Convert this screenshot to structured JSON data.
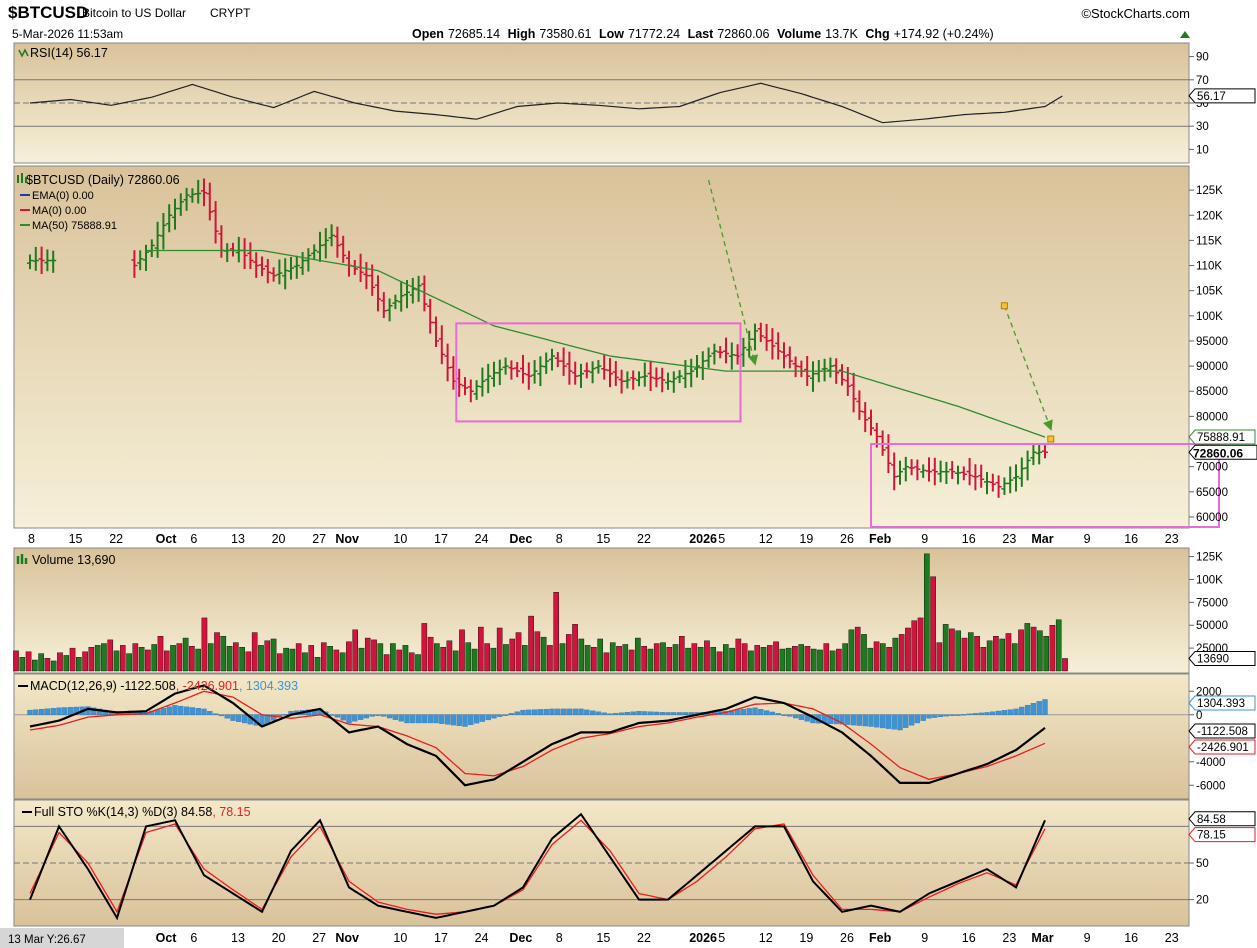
{
  "header": {
    "symbol": "$BTCUSD",
    "name": "Bitcoin to US Dollar",
    "exchange": "CRYPT",
    "datetime": "5-Mar-2026 11:53am",
    "brand": "©StockCharts.com",
    "open_label": "Open",
    "open": "72685.14",
    "high_label": "High",
    "high": "73580.61",
    "low_label": "Low",
    "low": "71772.24",
    "last_label": "Last",
    "last": "72860.06",
    "volume_label": "Volume",
    "volume": "13.7K",
    "chg_label": "Chg",
    "chg": "+174.92 (+0.24%)"
  },
  "cursor_readout": "13 Mar Y:26.67",
  "colors": {
    "up": "#1e7a1e",
    "down": "#d2143c",
    "ma50": "#2e8b2e",
    "box": "#e86bd6",
    "arrow": "#4a9a2a",
    "macd_hist": "#3f93d4",
    "signal": "#e81e1e",
    "panel_top": "#d9c29a",
    "panel_bottom": "#f6f0d8"
  },
  "x_axis": {
    "labels": [
      {
        "d": 0,
        "t": "8"
      },
      {
        "d": 7,
        "t": "15"
      },
      {
        "d": 14,
        "t": "22"
      },
      {
        "d": 22,
        "t": "Oct",
        "bold": true
      },
      {
        "d": 28,
        "t": "6"
      },
      {
        "d": 35,
        "t": "13"
      },
      {
        "d": 42,
        "t": "20"
      },
      {
        "d": 49,
        "t": "27"
      },
      {
        "d": 53,
        "t": "Nov",
        "bold": true
      },
      {
        "d": 63,
        "t": "10"
      },
      {
        "d": 70,
        "t": "17"
      },
      {
        "d": 77,
        "t": "24"
      },
      {
        "d": 83,
        "t": "Dec",
        "bold": true
      },
      {
        "d": 91,
        "t": "8"
      },
      {
        "d": 98,
        "t": "15"
      },
      {
        "d": 105,
        "t": "22"
      },
      {
        "d": 114,
        "t": "2026",
        "bold": true
      },
      {
        "d": 119,
        "t": "5"
      },
      {
        "d": 126,
        "t": "12"
      },
      {
        "d": 133,
        "t": "19"
      },
      {
        "d": 140,
        "t": "26"
      },
      {
        "d": 145,
        "t": "Feb",
        "bold": true
      },
      {
        "d": 154,
        "t": "9"
      },
      {
        "d": 161,
        "t": "16"
      },
      {
        "d": 168,
        "t": "23"
      },
      {
        "d": 173,
        "t": "Mar",
        "bold": true
      },
      {
        "d": 182,
        "t": "9"
      },
      {
        "d": 189,
        "t": "16"
      },
      {
        "d": 196,
        "t": "23"
      }
    ]
  },
  "chart_data": [
    {
      "type": "line",
      "title": "RSI(14) 56.17",
      "value_label": "56.17",
      "ylim": [
        0,
        100
      ],
      "y_ticks": [
        90,
        70,
        50,
        30,
        10
      ],
      "y_ticks_text": [
        "90",
        "70",
        "50",
        "30",
        "10"
      ],
      "levels": [
        70,
        30
      ],
      "series": [
        {
          "name": "RSI(14)",
          "x": [
            0,
            7,
            14,
            21,
            28,
            35,
            42,
            49,
            56,
            63,
            70,
            77,
            84,
            91,
            98,
            105,
            112,
            119,
            126,
            133,
            140,
            147,
            154,
            161,
            168,
            175,
            178
          ],
          "values": [
            50,
            53,
            48,
            55,
            66,
            55,
            46,
            60,
            50,
            43,
            40,
            36,
            47,
            50,
            48,
            45,
            47,
            59,
            67,
            58,
            47,
            33,
            36,
            40,
            42,
            47,
            56
          ]
        }
      ]
    },
    {
      "type": "line",
      "title": "$BTCUSD (Daily) 72860.06",
      "legend": [
        "EMA(0) 0.00",
        "MA(0) 0.00",
        "MA(50) 75888.91"
      ],
      "ylim": [
        58000,
        129000
      ],
      "y_ticks": [
        125000,
        120000,
        115000,
        110000,
        105000,
        100000,
        95000,
        90000,
        85000,
        80000,
        70000,
        65000,
        60000
      ],
      "y_ticks_text": [
        "125K",
        "120K",
        "115K",
        "110K",
        "105K",
        "100K",
        "95000",
        "90000",
        "85000",
        "80000",
        "70000",
        "65000",
        "60000"
      ],
      "ma50_label": "75888.91",
      "last_label": "72860.06",
      "price_x": [
        0,
        4,
        18,
        21,
        24,
        27,
        30,
        33,
        36,
        39,
        42,
        46,
        49,
        52,
        55,
        58,
        61,
        64,
        67,
        70,
        73,
        76,
        79,
        82,
        86,
        90,
        94,
        98,
        102,
        106,
        110,
        114,
        118,
        122,
        125,
        127,
        130,
        134,
        138,
        141,
        143,
        146,
        149,
        151,
        155,
        159,
        163,
        167,
        170,
        173,
        175
      ],
      "price_y": [
        111000,
        111000,
        110000,
        114000,
        120000,
        124000,
        124500,
        113000,
        113000,
        110000,
        108000,
        110000,
        113000,
        116000,
        110000,
        108000,
        101000,
        104000,
        106000,
        95000,
        87000,
        85000,
        88000,
        90000,
        88000,
        92000,
        88000,
        90000,
        87000,
        88000,
        87000,
        89000,
        93000,
        92000,
        97000,
        95000,
        92000,
        88000,
        90000,
        86000,
        81000,
        76000,
        68000,
        70000,
        69000,
        69000,
        68000,
        66000,
        68000,
        72860,
        72860
      ],
      "ma50_x": [
        20,
        40,
        60,
        80,
        100,
        120,
        140,
        160,
        175
      ],
      "ma50_y": [
        113000,
        113000,
        109000,
        98000,
        92000,
        89000,
        89000,
        82000,
        75889
      ],
      "boxes": [
        {
          "x0": 73.5,
          "x1": 122.5,
          "y0": 98500,
          "y1": 79000
        },
        {
          "x0": 145,
          "x1": 205,
          "y0": 74500,
          "y1": 58000
        }
      ],
      "arrows": [
        {
          "x0": 117,
          "y0": 127000,
          "x1": 125,
          "y1": 90500
        },
        {
          "x0": 168,
          "y0": 102000,
          "x1": 176,
          "y1": 77500
        }
      ]
    },
    {
      "type": "bar",
      "title": "Volume 13,690",
      "value_label": "13690",
      "ylim": [
        0,
        130000
      ],
      "y_ticks": [
        125000,
        100000,
        75000,
        50000,
        25000
      ],
      "y_ticks_text": [
        "125K",
        "100K",
        "75000",
        "50000",
        "25000"
      ],
      "values": [
        22000,
        15000,
        21000,
        12000,
        19000,
        14000,
        11000,
        20000,
        17000,
        25000,
        15000,
        21000,
        26000,
        28000,
        30000,
        34000,
        22000,
        28000,
        19000,
        30000,
        26000,
        23000,
        29000,
        38000,
        22000,
        28000,
        30000,
        36000,
        27000,
        24000,
        58000,
        30000,
        42000,
        38000,
        27000,
        31000,
        26000,
        21000,
        42000,
        28000,
        33000,
        35000,
        19000,
        25000,
        24000,
        30000,
        20000,
        28000,
        15000,
        31000,
        27000,
        23000,
        20000,
        32000,
        45000,
        25000,
        36000,
        34000,
        30000,
        18000,
        30000,
        23000,
        28000,
        20000,
        18000,
        52000,
        37000,
        30000,
        26000,
        33000,
        22000,
        45000,
        31000,
        24000,
        48000,
        30000,
        25000,
        47000,
        29000,
        35000,
        42000,
        28000,
        60000,
        43000,
        37000,
        28000,
        86000,
        30000,
        40000,
        51000,
        35000,
        28000,
        26000,
        35000,
        20000,
        31000,
        27000,
        29000,
        23000,
        36000,
        27000,
        24000,
        30000,
        31000,
        26000,
        29000,
        38000,
        25000,
        30000,
        26000,
        33000,
        26000,
        21000,
        29000,
        25000,
        35000,
        30000,
        22000,
        28000,
        26000,
        28000,
        32000,
        24000,
        25000,
        27000,
        29000,
        27000,
        24000,
        23000,
        30000,
        22000,
        24000,
        30000,
        45000,
        48000,
        40000,
        25000,
        32000,
        30000,
        26000,
        36000,
        40000,
        47000,
        55000,
        58000,
        128000,
        103000,
        31000,
        51000,
        46000,
        44000,
        36000,
        42000,
        38000,
        26000,
        33000,
        38000,
        35000,
        41000,
        30000,
        45000,
        52000,
        48000,
        44000,
        38000,
        50000,
        56000,
        13690
      ],
      "colors": [
        "d",
        "u",
        "d",
        "u",
        "u",
        "d",
        "u",
        "d",
        "u",
        "d",
        "u",
        "d",
        "d",
        "u",
        "u",
        "d",
        "u",
        "d",
        "u",
        "d",
        "u",
        "d",
        "u",
        "d",
        "d",
        "u",
        "d",
        "u",
        "d",
        "u",
        "d",
        "u",
        "d",
        "u",
        "u",
        "d",
        "u",
        "d",
        "d",
        "u",
        "d",
        "u",
        "d",
        "u",
        "u",
        "d",
        "u",
        "d",
        "u",
        "d",
        "u",
        "d",
        "u",
        "d",
        "d",
        "u",
        "d",
        "d",
        "u",
        "d",
        "u",
        "d",
        "u",
        "d",
        "u",
        "d",
        "d",
        "u",
        "d",
        "d",
        "u",
        "d",
        "u",
        "u",
        "d",
        "d",
        "u",
        "d",
        "u",
        "d",
        "d",
        "u",
        "d",
        "d",
        "u",
        "d",
        "d",
        "u",
        "d",
        "d",
        "u",
        "u",
        "d",
        "u",
        "d",
        "u",
        "d",
        "u",
        "d",
        "u",
        "d",
        "u",
        "d",
        "u",
        "d",
        "u",
        "d",
        "u",
        "d",
        "u",
        "d",
        "u",
        "d",
        "u",
        "u",
        "d",
        "d",
        "u",
        "d",
        "u",
        "d",
        "d",
        "u",
        "u",
        "d",
        "u",
        "d",
        "u",
        "u",
        "d",
        "u",
        "d",
        "u",
        "u",
        "d",
        "u",
        "u",
        "d",
        "u",
        "d",
        "u",
        "d",
        "d",
        "d",
        "d",
        "u",
        "d",
        "d",
        "u",
        "d",
        "u",
        "d",
        "u",
        "d",
        "d",
        "u",
        "d",
        "u",
        "d",
        "u",
        "d",
        "u",
        "d",
        "u",
        "u",
        "d",
        "u",
        "d",
        "u",
        "u",
        "u",
        "u"
      ]
    },
    {
      "type": "line",
      "title": "MACD(12,26,9) -1122.508, -2426.901, 1304.393",
      "title_parts": [
        "MACD(12,26,9) -1122.508",
        ", -2426.901",
        ", 1304.393"
      ],
      "ylim": [
        -7000,
        3300
      ],
      "y_ticks": [
        2000,
        0,
        -4000,
        -6000
      ],
      "y_ticks_text": [
        "2000",
        "0",
        "-4000",
        "-6000"
      ],
      "value_labels": [
        "1304.393",
        "-1122.508",
        "-2426.901"
      ],
      "x": [
        0,
        5,
        10,
        15,
        20,
        25,
        30,
        35,
        40,
        45,
        50,
        55,
        60,
        65,
        70,
        75,
        80,
        85,
        90,
        95,
        100,
        105,
        110,
        115,
        120,
        125,
        130,
        135,
        140,
        145,
        150,
        155,
        160,
        165,
        170,
        175
      ],
      "series": [
        {
          "name": "MACD(12,26,9)",
          "values": [
            -1000,
            -500,
            500,
            200,
            300,
            1800,
            2500,
            1000,
            -1000,
            0,
            500,
            -1500,
            -1000,
            -2500,
            -3500,
            -6000,
            -5500,
            -4000,
            -2500,
            -1500,
            -1500,
            -700,
            -500,
            0,
            500,
            1500,
            1000,
            -200,
            -1500,
            -3500,
            -5800,
            -5800,
            -5000,
            -4200,
            -3000,
            -1122
          ]
        },
        {
          "name": "Signal",
          "values": [
            -1300,
            -900,
            -200,
            0,
            100,
            1000,
            2000,
            1500,
            0,
            -300,
            0,
            -800,
            -1000,
            -1800,
            -2800,
            -5000,
            -5200,
            -4400,
            -3000,
            -2000,
            -1600,
            -1000,
            -700,
            -200,
            200,
            900,
            1000,
            500,
            -700,
            -2500,
            -4500,
            -5500,
            -5000,
            -4400,
            -3500,
            -2427
          ]
        },
        {
          "name": "Histogram",
          "values": [
            400,
            600,
            700,
            200,
            200,
            800,
            500,
            -500,
            -1000,
            300,
            500,
            -700,
            0,
            -700,
            -700,
            -1000,
            -300,
            400,
            500,
            500,
            100,
            300,
            200,
            200,
            300,
            600,
            0,
            -700,
            -800,
            -1000,
            -1300,
            -300,
            0,
            200,
            500,
            1304
          ]
        }
      ]
    },
    {
      "type": "line",
      "title": "Full STO %K(14,3) %D(3) 84.58, 78.15",
      "title_parts": [
        "Full STO %K(14,3) %D(3) 84.58",
        ", 78.15"
      ],
      "ylim": [
        0,
        100
      ],
      "y_ticks": [
        50,
        20
      ],
      "y_ticks_text": [
        "50",
        "20"
      ],
      "levels": [
        80,
        50,
        20
      ],
      "value_labels": [
        "84.58",
        "78.15"
      ],
      "x": [
        0,
        5,
        10,
        15,
        20,
        25,
        30,
        35,
        40,
        45,
        50,
        55,
        60,
        65,
        70,
        75,
        80,
        85,
        90,
        95,
        100,
        105,
        110,
        115,
        120,
        125,
        130,
        135,
        140,
        145,
        150,
        155,
        160,
        165,
        170,
        175
      ],
      "series": [
        {
          "name": "%K",
          "values": [
            20,
            80,
            45,
            5,
            80,
            85,
            40,
            25,
            10,
            60,
            85,
            30,
            15,
            10,
            5,
            10,
            15,
            30,
            70,
            90,
            55,
            20,
            20,
            40,
            60,
            80,
            80,
            35,
            10,
            15,
            10,
            25,
            35,
            45,
            30,
            85
          ]
        },
        {
          "name": "%D",
          "values": [
            25,
            75,
            50,
            10,
            75,
            82,
            45,
            28,
            12,
            55,
            80,
            35,
            18,
            12,
            8,
            10,
            15,
            28,
            65,
            85,
            60,
            25,
            20,
            35,
            55,
            78,
            82,
            40,
            12,
            12,
            10,
            22,
            33,
            42,
            32,
            78
          ]
        }
      ]
    }
  ]
}
